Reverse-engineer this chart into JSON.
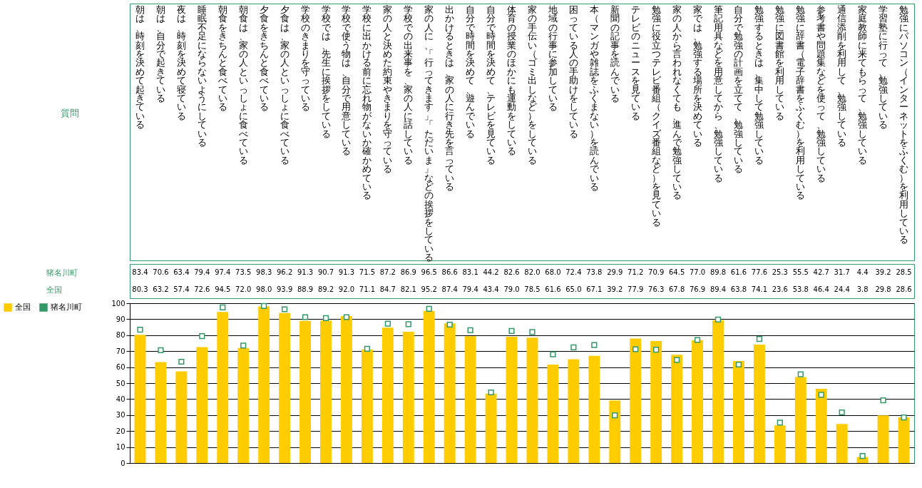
{
  "chart_data": {
    "type": "bar",
    "annotations": [
      "質問"
    ],
    "categories": [
      "朝は、時刻を決めて起きている",
      "朝は、自分で起きている",
      "夜は、時刻を決めて寝ている",
      "睡眠不足にならないようにしている",
      "朝食をきちんと食べている",
      "朝食は、家の人といっしょに食べている",
      "夕食をきちんと食べている",
      "夕食は、家の人といっしょに食べている",
      "学校のきまりを守っている",
      "学校では、先生に挨拶をしている",
      "学校で使う物は、自分で用意している",
      "学校に出かける前に忘れ物がないか確かめている",
      "家の人と決めた約束やきまりを守っている",
      "学校での出来事を、家の人に話している",
      "家の人に、「行ってきます」「ただいま」などの挨拶をしている",
      "出かけるときは、家の人に行き先を言っている",
      "自分で時間を決めて、遊んでいる",
      "自分で時間を決めて、テレビを見ている",
      "体育の授業のほかにも運動をしている",
      "家の手伝い（ゴミ出しなど）をしている",
      "地域の行事に参加している",
      "困っている人の手助けをしている",
      "本（マンガや雑誌をふくまない）を読んでいる",
      "新聞の記事を読んでいる",
      "テレビのニュースを見ている",
      "勉強に役立つテレビ番組（クイズ番組など）を見ている",
      "家の人から言われなくても、進んで勉強している",
      "家では、勉強する場所を決めている",
      "筆記用具などを用意してから、勉強している",
      "自分で勉強の計画を立てて、勉強している",
      "勉強するときは、集中して勉強している",
      "勉強に図書館を利用している",
      "勉強に辞書（電子辞書をふくむ）を利用している",
      "参考書や問題集などを使って、勉強している",
      "通信添削を利用して、勉強している",
      "家庭教師に来てもらって、勉強している",
      "学習塾に行って、勉強している",
      "勉強にパソコン（インターネットをふくむ）を利用している"
    ],
    "series": [
      {
        "name": "猪名川町",
        "type": "scatter",
        "color": "#339966",
        "values": [
          83.4,
          70.6,
          63.4,
          79.4,
          97.4,
          73.5,
          98.3,
          96.2,
          91.3,
          90.7,
          91.3,
          71.5,
          87.2,
          86.9,
          96.5,
          86.6,
          83.1,
          44.2,
          82.6,
          82.0,
          68.0,
          72.4,
          73.8,
          29.9,
          71.2,
          70.9,
          64.5,
          77.0,
          89.8,
          61.6,
          77.6,
          25.3,
          55.5,
          42.7,
          31.7,
          4.4,
          39.2,
          28.5
        ],
        "value_labels": [
          "83.4",
          "70.6",
          "63.4",
          "79.4",
          "97.4",
          "73.5",
          "98.3",
          "96.2",
          "91.3",
          "90.7",
          "91.3",
          "71.5",
          "87.2",
          "86.9",
          "96.5",
          "86.6",
          "83.1",
          "44.2",
          "82.6",
          "82.0",
          "68.0",
          "72.4",
          "73.8",
          "29.9",
          "71.2",
          "70.9",
          "64.5",
          "77.0",
          "89.8",
          "61.6",
          "77.6",
          "25.3",
          "55.5",
          "42.7",
          "31.7",
          "4.4",
          "39.2",
          "28.5"
        ]
      },
      {
        "name": "全国",
        "color": "#ffcc00",
        "values": [
          80.3,
          63.2,
          57.4,
          72.6,
          94.5,
          72.0,
          98.0,
          93.9,
          88.9,
          89.2,
          92.0,
          71.1,
          84.7,
          82.1,
          95.2,
          87.4,
          79.4,
          43.4,
          79.0,
          78.5,
          61.6,
          65.0,
          67.1,
          39.2,
          77.9,
          76.3,
          67.8,
          76.9,
          89.4,
          63.8,
          74.1,
          23.6,
          53.8,
          46.4,
          24.4,
          3.8,
          29.8,
          28.6
        ],
        "value_labels": [
          "80.3",
          "63.2",
          "57.4",
          "72.6",
          "94.5",
          "72.0",
          "98.0",
          "93.9",
          "88.9",
          "89.2",
          "92.0",
          "71.1",
          "84.7",
          "82.1",
          "95.2",
          "87.4",
          "79.4",
          "43.4",
          "79.0",
          "78.5",
          "61.6",
          "65.0",
          "67.1",
          "39.2",
          "77.9",
          "76.3",
          "67.8",
          "76.9",
          "89.4",
          "63.8",
          "74.1",
          "23.6",
          "53.8",
          "46.4",
          "24.4",
          "3.8",
          "29.8",
          "28.6"
        ]
      }
    ],
    "marker": "square",
    "ylim": [
      0,
      100
    ],
    "yticks": [
      0,
      10,
      20,
      30,
      40,
      50,
      60,
      70,
      80,
      90,
      100
    ],
    "grid": "y",
    "legend": "left"
  }
}
